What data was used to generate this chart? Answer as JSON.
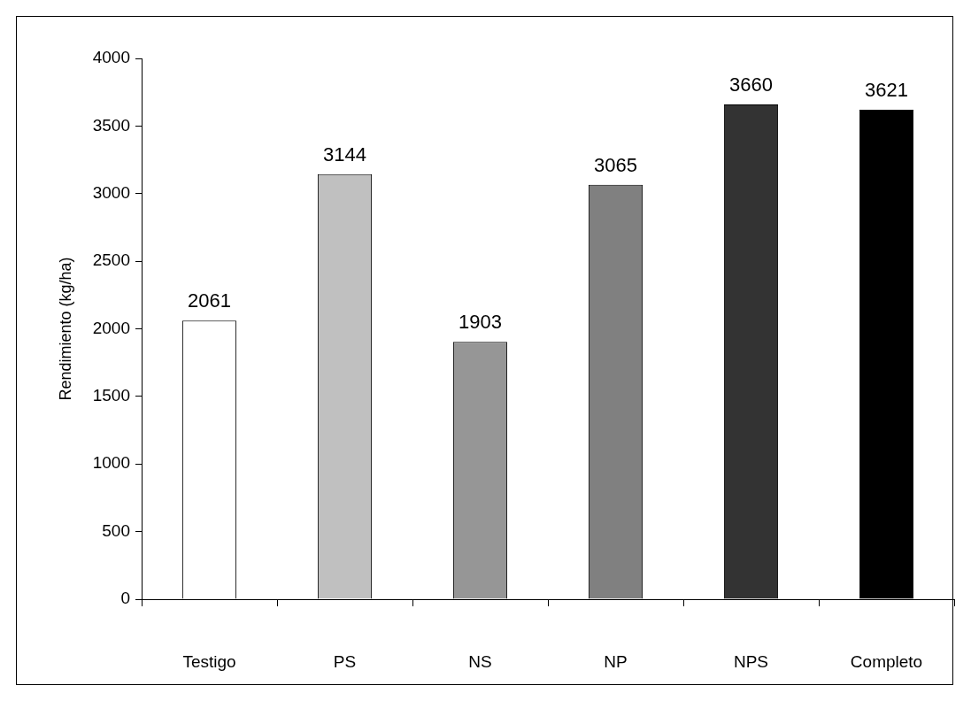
{
  "chart_data": {
    "type": "bar",
    "ylabel": "Rendimiento (kg/ha)",
    "categories": [
      "Testigo",
      "PS",
      "NS",
      "NP",
      "NPS",
      "Completo"
    ],
    "values": [
      2061,
      3144,
      1903,
      3065,
      3660,
      3621
    ],
    "colors": [
      "#ffffff",
      "#c0c0c0",
      "#969696",
      "#808080",
      "#333333",
      "#000000"
    ],
    "ylim": [
      0,
      4000
    ],
    "yticks": [
      0,
      500,
      1000,
      1500,
      2000,
      2500,
      3000,
      3500,
      4000
    ],
    "grid": false,
    "legend": false,
    "data_labels": true
  }
}
